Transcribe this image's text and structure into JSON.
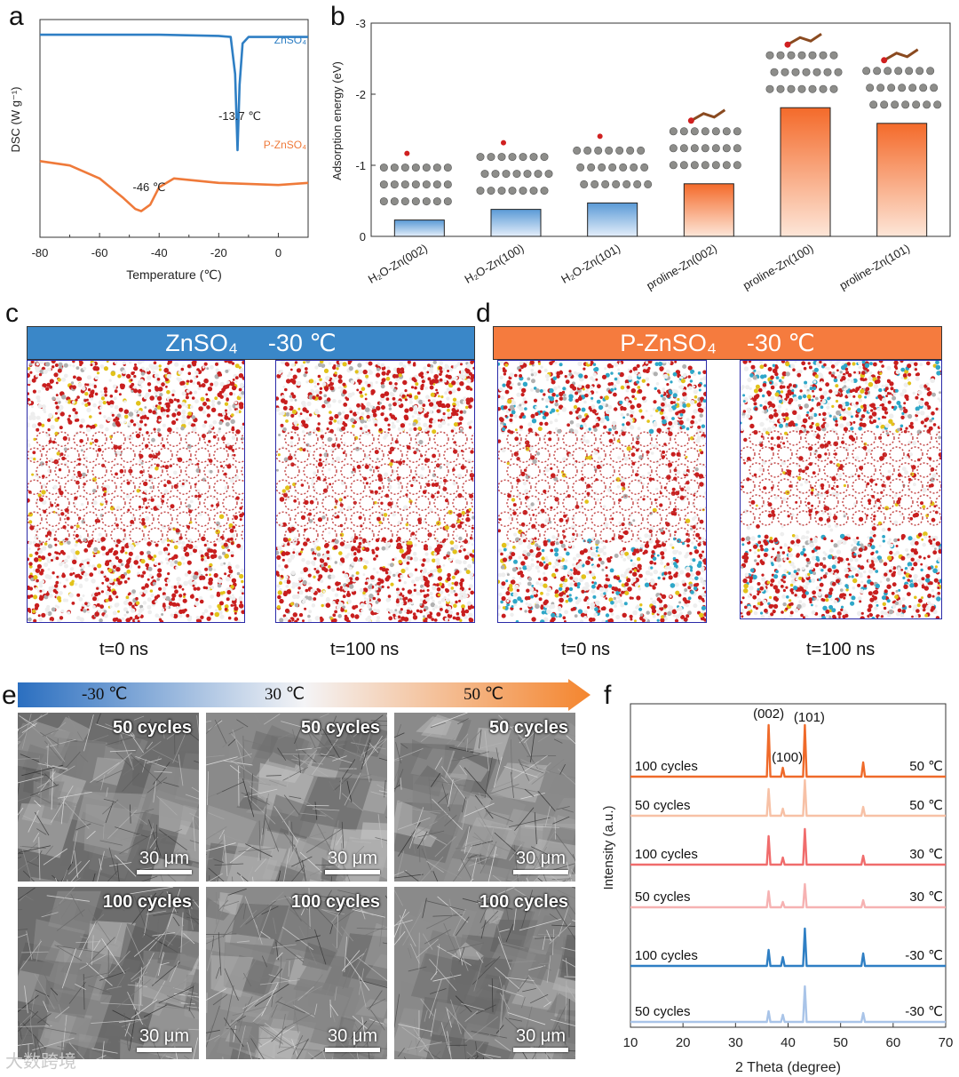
{
  "panels": {
    "a": {
      "label": "a",
      "chart_data": {
        "type": "line",
        "xlabel": "Temperature (℃)",
        "ylabel": "DSC (W g⁻¹)",
        "xlim": [
          -80,
          10
        ],
        "xticks": [
          "-80",
          "-60",
          "-40",
          "-20",
          "0"
        ],
        "series": [
          {
            "name": "ZnSO₄",
            "color": "#2f7fc4",
            "x": [
              -80,
              -40,
              -20,
              -16,
              -14.5,
              -13.7,
              -13,
              -12,
              -10,
              10
            ],
            "y": [
              0.78,
              0.78,
              0.775,
              0.77,
              0.6,
              0.25,
              0.55,
              0.74,
              0.77,
              0.77
            ]
          },
          {
            "name": "P-ZnSO₄",
            "color": "#ef7a3a",
            "x": [
              -80,
              -70,
              -60,
              -52,
              -48,
              -46,
              -43,
              -40,
              -35,
              -20,
              0,
              10
            ],
            "y": [
              0.2,
              0.18,
              0.12,
              0.03,
              -0.02,
              -0.03,
              0.0,
              0.08,
              0.12,
              0.1,
              0.09,
              0.1
            ]
          }
        ],
        "annotations": [
          "-13.7 ℃",
          "-46 ℃"
        ]
      }
    },
    "b": {
      "label": "b",
      "chart_data": {
        "type": "bar",
        "ylabel": "Adsorption energy (eV)",
        "yticks": [
          "0",
          "-1",
          "-2",
          "-3"
        ],
        "ylim": [
          0,
          -3
        ],
        "categories": [
          "H₂O-Zn(002)",
          "H₂O-Zn(100)",
          "H₂O-Zn(101)",
          "proline-Zn(002)",
          "proline-Zn(100)",
          "proline-Zn(101)"
        ],
        "values": [
          -0.23,
          -0.38,
          -0.47,
          -0.74,
          -1.81,
          -1.59
        ],
        "colors": [
          "blue",
          "blue",
          "blue",
          "orange",
          "orange",
          "orange"
        ]
      }
    },
    "c": {
      "label": "c",
      "title": "ZnSO₄",
      "temp": "-30 ℃",
      "t0": "t=0 ns",
      "t1": "t=100 ns"
    },
    "d": {
      "label": "d",
      "title": "P-ZnSO₄",
      "temp": "-30 ℃",
      "t0": "t=0 ns",
      "t1": "t=100 ns"
    },
    "e": {
      "label": "e",
      "temps": [
        "-30 ℃",
        "30 ℃",
        "50 ℃"
      ],
      "row1": "50 cycles",
      "row2": "100 cycles",
      "scale": "30 μm"
    },
    "f": {
      "label": "f",
      "chart_data": {
        "type": "line",
        "xlabel": "2 Theta (degree)",
        "ylabel": "Intensity (a.u.)",
        "xlim": [
          10,
          70
        ],
        "xticks": [
          "10",
          "20",
          "30",
          "40",
          "50",
          "60",
          "70"
        ],
        "peaks": {
          "positions": [
            36.3,
            39.0,
            43.2,
            54.3
          ],
          "labels": [
            "(002)",
            "(100)",
            "(101)"
          ]
        },
        "series": [
          {
            "cycles": "100 cycles",
            "temp": "50 ℃",
            "color": "#ef6a2a",
            "heights": [
              58,
              10,
              58,
              16
            ]
          },
          {
            "cycles": "50 cycles",
            "temp": "50 ℃",
            "color": "#f7c1a6",
            "heights": [
              30,
              8,
              40,
              10
            ]
          },
          {
            "cycles": "100 cycles",
            "temp": "30 ℃",
            "color": "#f06c6c",
            "heights": [
              32,
              8,
              40,
              10
            ]
          },
          {
            "cycles": "50 cycles",
            "temp": "30 ℃",
            "color": "#f6b2b2",
            "heights": [
              18,
              6,
              26,
              8
            ]
          },
          {
            "cycles": "100 cycles",
            "temp": "-30 ℃",
            "color": "#2f7fc4",
            "heights": [
              18,
              10,
              42,
              14
            ]
          },
          {
            "cycles": "50 cycles",
            "temp": "-30 ℃",
            "color": "#a9c4e8",
            "heights": [
              12,
              8,
              40,
              10
            ]
          }
        ]
      }
    }
  },
  "watermark": "大数跨境"
}
